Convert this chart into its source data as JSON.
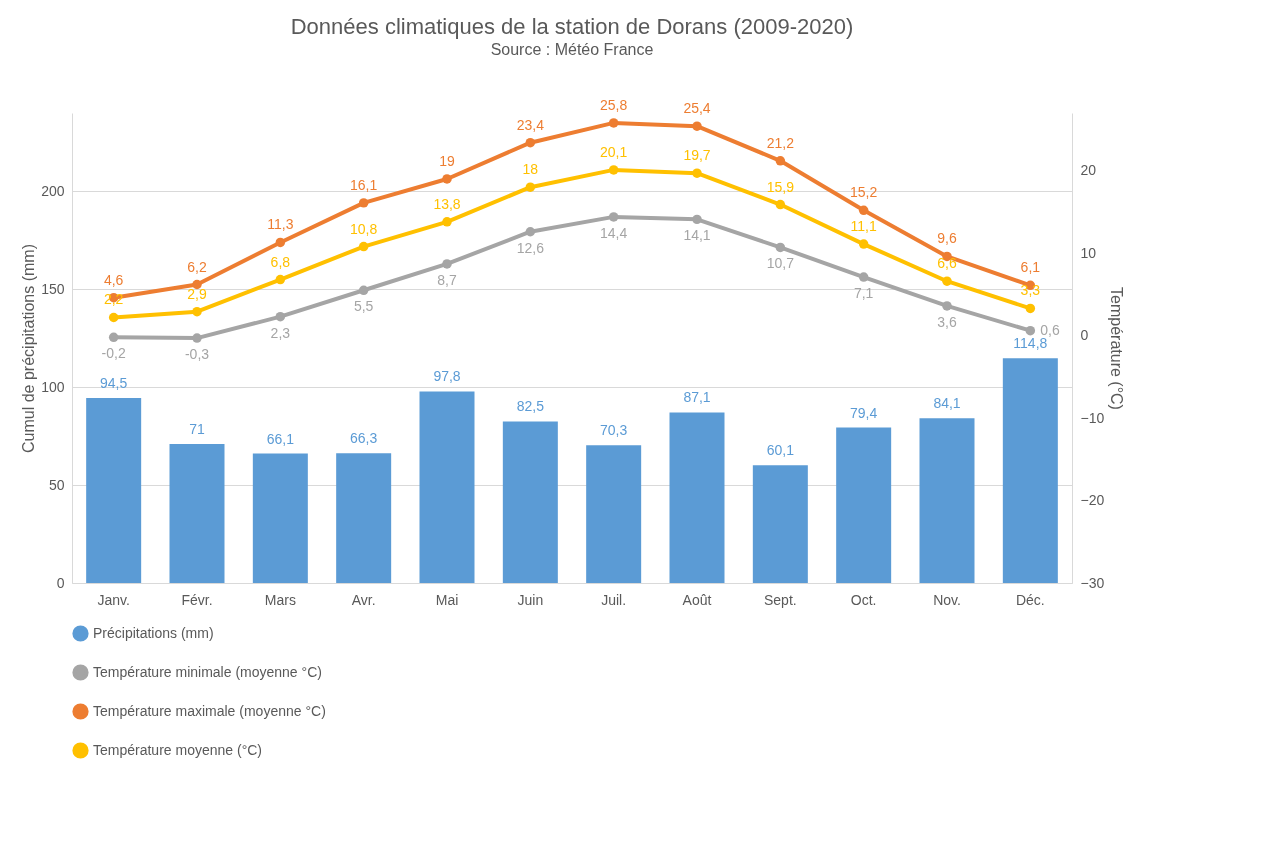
{
  "chart_data": {
    "type": "bar",
    "title": "Données climatiques de la station de Dorans (2009-2020)",
    "subtitle": "Source : Météo France",
    "ylabel": "Cumul de précipitations (mm)",
    "y2label": "Température (°C)",
    "categories": [
      "Janv.",
      "Févr.",
      "Mars",
      "Avr.",
      "Mai",
      "Juin",
      "Juil.",
      "Août",
      "Sept.",
      "Oct.",
      "Nov.",
      "Déc."
    ],
    "series": [
      {
        "name": "Précipitations (mm)",
        "color": "#5b9bd5",
        "values": [
          94.5,
          71,
          66.1,
          66.3,
          97.8,
          82.5,
          70.3,
          87.1,
          60.1,
          79.4,
          84.1,
          114.8
        ],
        "value_labels": [
          "94,5",
          "71",
          "66,1",
          "66,3",
          "97,8",
          "82,5",
          "70,3",
          "87,1",
          "60,1",
          "79,4",
          "84,1",
          "114,8"
        ]
      },
      {
        "name": "Température minimale (moyenne °C)",
        "type": "line",
        "axis": "y2",
        "color": "#a5a5a5",
        "values": [
          -0.2,
          -0.3,
          2.3,
          5.5,
          8.7,
          12.6,
          14.4,
          14.1,
          10.7,
          7.1,
          3.6,
          0.6
        ],
        "value_labels": [
          "-0,2",
          "-0,3",
          "2,3",
          "5,5",
          "8,7",
          "12,6",
          "14,4",
          "14,1",
          "10,7",
          "7,1",
          "3,6",
          "0,6"
        ]
      },
      {
        "name": "Température maximale (moyenne °C)",
        "type": "line",
        "axis": "y2",
        "color": "#ed7d31",
        "values": [
          4.6,
          6.2,
          11.3,
          16.1,
          19,
          23.4,
          25.8,
          25.4,
          21.2,
          15.2,
          9.6,
          6.1
        ],
        "value_labels": [
          "4,6",
          "6,2",
          "11,3",
          "16,1",
          "19",
          "23,4",
          "25,8",
          "25,4",
          "21,2",
          "15,2",
          "9,6",
          "6,1"
        ]
      },
      {
        "name": "Température moyenne (°C)",
        "type": "line",
        "axis": "y2",
        "color": "#ffc000",
        "values": [
          2.2,
          2.9,
          6.8,
          10.8,
          13.8,
          18,
          20.1,
          19.7,
          15.9,
          11.1,
          6.6,
          3.3
        ],
        "value_labels": [
          "2,2",
          "2,9",
          "6,8",
          "10,8",
          "13,8",
          "18",
          "20,1",
          "19,7",
          "15,9",
          "11,1",
          "6,6",
          "3,3"
        ]
      }
    ],
    "ylim": [
      0,
      240
    ],
    "yticks": [
      0,
      50,
      100,
      150,
      200
    ],
    "y2lim": [
      -30,
      27
    ],
    "y2ticks": [
      -30,
      -20,
      -10,
      0,
      10,
      20
    ],
    "grid": "y",
    "legend": "bottom",
    "marker": "circle"
  }
}
